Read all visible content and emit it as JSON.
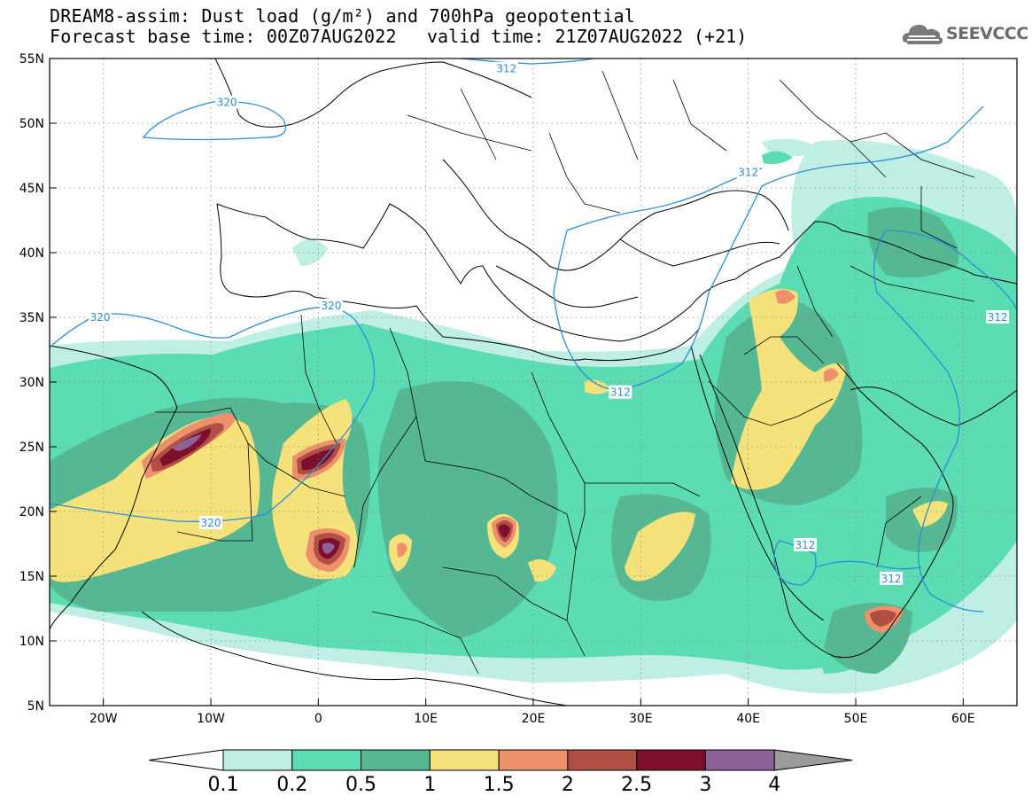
{
  "header": {
    "title_line1": "DREAM8-assim: Dust load (g/m²) and 700hPa geopotential",
    "title_line2": "Forecast base time: 00Z07AUG2022",
    "valid_time": "valid time: 21Z07AUG2022 (+21)",
    "logo_text": "SEEVCCC"
  },
  "map": {
    "lat_labels": [
      "55N",
      "50N",
      "45N",
      "40N",
      "35N",
      "30N",
      "25N",
      "20N",
      "15N",
      "10N",
      "5N"
    ],
    "lon_labels": [
      "20W",
      "10W",
      "0",
      "10E",
      "20E",
      "30E",
      "40E",
      "50E",
      "60E"
    ],
    "lat_range": [
      5,
      55
    ],
    "lon_range": [
      -25,
      65
    ],
    "contour_labels": [
      {
        "text": "312",
        "lon": 17.5,
        "lat": 54.2
      },
      {
        "text": "320",
        "lon": -8.5,
        "lat": 51.6
      },
      {
        "text": "312",
        "lon": 40.0,
        "lat": 46.2
      },
      {
        "text": "320",
        "lon": 1.2,
        "lat": 35.9
      },
      {
        "text": "320",
        "lon": -20.3,
        "lat": 35.0
      },
      {
        "text": "312",
        "lon": 63.2,
        "lat": 35.0
      },
      {
        "text": "312",
        "lon": 28.1,
        "lat": 29.2
      },
      {
        "text": "320",
        "lon": -10.0,
        "lat": 19.1
      },
      {
        "text": "312",
        "lon": 45.3,
        "lat": 17.4
      },
      {
        "text": "312",
        "lon": 53.3,
        "lat": 14.8
      }
    ],
    "geopotential_color": "#2a8ed8"
  },
  "colorbar": {
    "labels": [
      "0.1",
      "0.2",
      "0.5",
      "1",
      "1.5",
      "2",
      "2.5",
      "3",
      "4"
    ],
    "colors": [
      "#bfeee4",
      "#5cdcb2",
      "#55b893",
      "#f6e27a",
      "#ec916b",
      "#b05045",
      "#7d0e2c",
      "#8c6298",
      "#9b9b9b"
    ]
  }
}
